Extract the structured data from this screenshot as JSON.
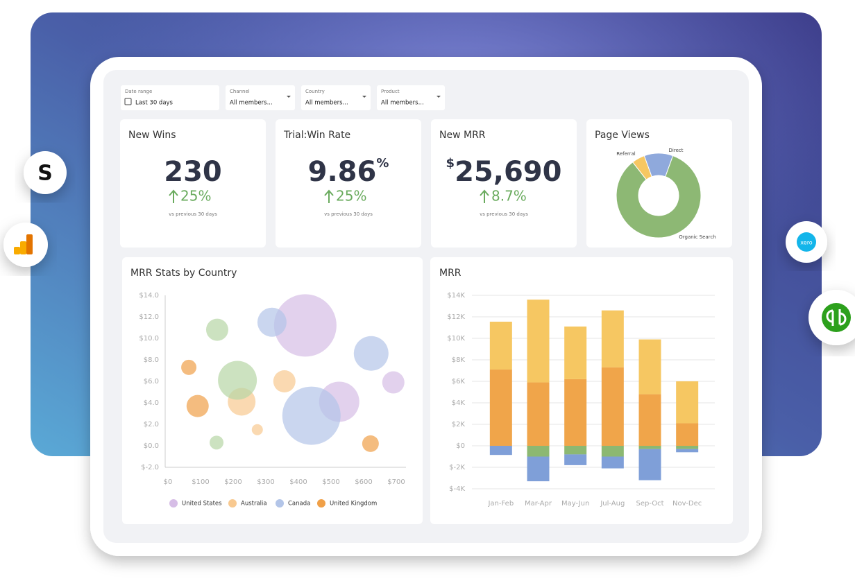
{
  "logos": [
    "S",
    "xero"
  ],
  "filters": [
    {
      "label": "Date range",
      "value": "Last 30 days"
    },
    {
      "label": "Channel",
      "value": "All members..."
    },
    {
      "label": "Country",
      "value": "All members..."
    },
    {
      "label": "Product",
      "value": "All members..."
    }
  ],
  "kpis": [
    {
      "title": "New Wins",
      "value": "230",
      "change": "25%",
      "note": "vs previous 30 days"
    },
    {
      "title": "Trial:Win Rate",
      "value": "9.86",
      "suffix": "%",
      "change": "25%",
      "note": "vs previous 30 days"
    },
    {
      "title": "New MRR",
      "prefix": "$",
      "value": "25,690",
      "change": "8.7%",
      "note": "vs previous 30 days"
    }
  ],
  "chart_data": [
    {
      "type": "pie",
      "title": "Page Views",
      "categories": [
        "Referral",
        "Direct",
        "Organic Search"
      ],
      "values": [
        5,
        11,
        84
      ],
      "colors": [
        "#f6c762",
        "#8fa9dc",
        "#8db874"
      ],
      "donut": true
    },
    {
      "type": "scatter",
      "title": "MRR Stats by Country",
      "xlim": [
        0,
        700
      ],
      "ylim": [
        -2,
        14
      ],
      "xticks": [
        {
          "value": 0,
          "label": "$0"
        },
        {
          "value": 100,
          "label": "$100"
        },
        {
          "value": 200,
          "label": "$200"
        },
        {
          "value": 300,
          "label": "$300"
        },
        {
          "value": 400,
          "label": "$400"
        },
        {
          "value": 500,
          "label": "$500"
        },
        {
          "value": 600,
          "label": "$600"
        },
        {
          "value": 700,
          "label": "$700"
        }
      ],
      "yticks": [
        {
          "value": -2,
          "label": "$-2.0"
        },
        {
          "value": 0,
          "label": "$0.0"
        },
        {
          "value": 2,
          "label": "$2.0"
        },
        {
          "value": 4,
          "label": "$4.0"
        },
        {
          "value": 6,
          "label": "$6.0"
        },
        {
          "value": 8,
          "label": "$8.0"
        },
        {
          "value": 10,
          "label": "$10.0"
        },
        {
          "value": 12,
          "label": "$12.0"
        },
        {
          "value": 14,
          "label": "$14.0"
        }
      ],
      "grid": false,
      "legend": "bottom",
      "series": [
        {
          "name": "United States",
          "color": "#d6bde6",
          "x": [
            421,
            525,
            691
          ],
          "values": [
            11.2,
            4.1,
            5.9
          ],
          "sizes": [
            45,
            29,
            16
          ]
        },
        {
          "name": "Australia",
          "color": "#f8c990",
          "x": [
            357,
            226,
            274
          ],
          "values": [
            6.0,
            4.1,
            1.5
          ],
          "sizes": [
            16,
            20,
            8
          ]
        },
        {
          "name": "Canada",
          "color": "#b3c5e8",
          "x": [
            319,
            623,
            440
          ],
          "values": [
            11.5,
            8.6,
            2.8
          ],
          "sizes": [
            21,
            25,
            42
          ]
        },
        {
          "name": "United Kingdom",
          "color": "#f0a048",
          "x": [
            64,
            91,
            621
          ],
          "values": [
            7.3,
            3.7,
            0.2
          ],
          "sizes": [
            11,
            16,
            12
          ]
        },
        {
          "color": "#b7d5a5",
          "x": [
            151,
            213,
            149
          ],
          "values": [
            10.8,
            6.1,
            0.3
          ],
          "sizes": [
            16,
            28,
            10
          ]
        }
      ]
    },
    {
      "type": "bar",
      "stacked": true,
      "title": "MRR",
      "categories": [
        "Jan-Feb",
        "Mar-Apr",
        "May-Jun",
        "Jul-Aug",
        "Sep-Oct",
        "Nov-Dec"
      ],
      "ylim": [
        -4000,
        14000
      ],
      "yticks": [
        {
          "value": -4000,
          "label": "$-4K"
        },
        {
          "value": -2000,
          "label": "$-2K"
        },
        {
          "value": 0,
          "label": "$0"
        },
        {
          "value": 2000,
          "label": "$2K"
        },
        {
          "value": 4000,
          "label": "$4K"
        },
        {
          "value": 6000,
          "label": "$6K"
        },
        {
          "value": 8000,
          "label": "$8K"
        },
        {
          "value": 10000,
          "label": "$10K"
        },
        {
          "value": 12000,
          "label": "$12K"
        },
        {
          "value": 14000,
          "label": "$14K"
        }
      ],
      "grid": true,
      "series": [
        {
          "color": "#f0a54a",
          "values": [
            7100,
            5900,
            6200,
            7300,
            4800,
            2100
          ]
        },
        {
          "color": "#f6c762",
          "values": [
            4450,
            7700,
            4900,
            5300,
            5100,
            3900
          ]
        },
        {
          "color": "#8cb872",
          "values": [
            0,
            -1000,
            -800,
            -1000,
            -300,
            -300
          ]
        },
        {
          "color": "#7f9fd8",
          "values": [
            -850,
            -2300,
            -1000,
            -1100,
            -2900,
            -300
          ]
        }
      ]
    }
  ]
}
